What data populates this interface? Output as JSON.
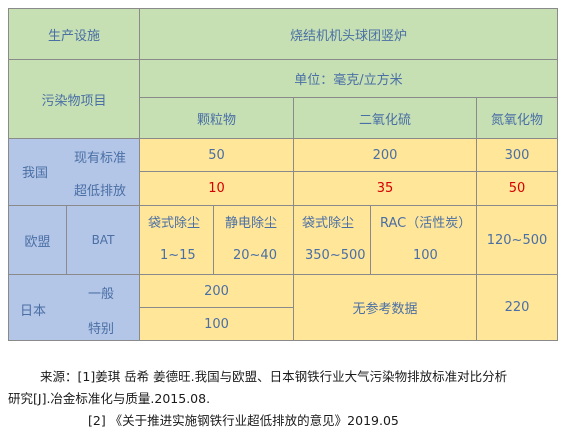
{
  "header": {
    "facility_label": "生产设施",
    "facility_name": "烧结机机头球团竖炉",
    "pollutant_label": "污染物项目",
    "unit": "单位：毫克/立方米",
    "pollutants": [
      "颗粒物",
      "二氧化硫",
      "氮氧化物"
    ]
  },
  "china": {
    "region": "我国",
    "rows": [
      {
        "label": "现有标准",
        "values": [
          "50",
          "200",
          "300"
        ]
      },
      {
        "label": "超低排放",
        "values": [
          "10",
          "35",
          "50"
        ]
      }
    ]
  },
  "eu": {
    "region": "欧盟",
    "sub": "BAT",
    "methods": [
      "袋式除尘",
      "静电除尘",
      "袋式除尘",
      "RAC（活性炭）"
    ],
    "values": [
      "1~15",
      "20~40",
      "350~500",
      "100"
    ],
    "nox": "120~500"
  },
  "japan": {
    "region": "日本",
    "rows": [
      {
        "label": "一般",
        "value": "200"
      },
      {
        "label": "特别",
        "value": "100"
      }
    ],
    "so2": "无参考数据",
    "nox": "220"
  },
  "sources": {
    "line1": "来源：[1]姜琪  岳希  姜德旺.我国与欧盟、日本钢铁行业大气污染物排放标准对比分析",
    "line2": "研究[J].冶金标准化与质量.2015.08.",
    "line3": "[2] 《关于推进实施钢铁行业超低排放的意见》2019.05"
  }
}
